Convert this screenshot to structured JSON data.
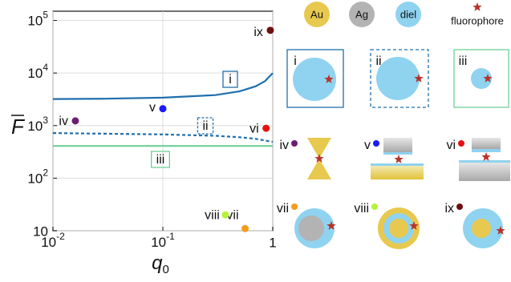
{
  "chart_data": {
    "type": "line",
    "y_label": "F",
    "x_label": "q",
    "x_label_subscript": "0",
    "xlog": true,
    "ylog": true,
    "grid": true,
    "xlim": [
      0.01,
      1
    ],
    "ylim": [
      10,
      150000
    ],
    "xticks": [
      {
        "value": 0.01,
        "label": "10",
        "exponent": "-2"
      },
      {
        "value": 0.1,
        "label": "10",
        "exponent": "-1"
      },
      1
    ],
    "yticks": [
      10,
      {
        "value": 100,
        "label": "10",
        "exponent": "2"
      },
      {
        "value": 1000,
        "label": "10",
        "exponent": "3"
      },
      {
        "value": 10000,
        "label": "10",
        "exponent": "4"
      },
      {
        "value": 100000,
        "label": "10",
        "exponent": "5"
      }
    ],
    "series": [
      {
        "name": "i",
        "color": "#1f6fad",
        "dashed": false,
        "x": [
          0.01,
          0.03,
          0.1,
          0.3,
          0.5,
          0.7,
          0.85,
          1
        ],
        "values": [
          3200,
          3250,
          3400,
          3800,
          4500,
          5600,
          7000,
          10000
        ]
      },
      {
        "name": "ii",
        "color": "#1f6fad",
        "dashed": true,
        "x": [
          0.01,
          0.03,
          0.1,
          0.3,
          0.5,
          0.7,
          0.85,
          1
        ],
        "values": [
          720,
          700,
          680,
          640,
          600,
          560,
          520,
          490
        ]
      },
      {
        "name": "iii",
        "color": "#6fcf97",
        "dashed": false,
        "x": [
          0.01,
          1
        ],
        "values": [
          410,
          410
        ]
      }
    ],
    "points": [
      {
        "name": "iv",
        "color": "#6b1f6e",
        "x": 0.016,
        "value": 1230
      },
      {
        "name": "v",
        "color": "#1a1aff",
        "x": 0.1,
        "value": 2100
      },
      {
        "name": "vi",
        "color": "#e81010",
        "x": 0.87,
        "value": 890
      },
      {
        "name": "vii",
        "color": "#f59c1a",
        "x": 0.56,
        "value": 11
      },
      {
        "name": "viii",
        "color": "#b5f23a",
        "x": 0.37,
        "value": 20
      },
      {
        "name": "ix",
        "color": "#6e0f0f",
        "x": 0.95,
        "value": 65000
      }
    ]
  },
  "legend": {
    "materials": [
      {
        "label": "Au",
        "color": "#e8c94f"
      },
      {
        "label": "Ag",
        "color": "#b3b3b3"
      },
      {
        "label": "diel",
        "color": "#8fd3f0"
      }
    ],
    "fluorophore": "fluorophore",
    "star_color": "#b8322a"
  },
  "schematics": [
    "i",
    "ii",
    "iii",
    "iv",
    "v",
    "vi",
    "vii",
    "viii",
    "ix"
  ]
}
